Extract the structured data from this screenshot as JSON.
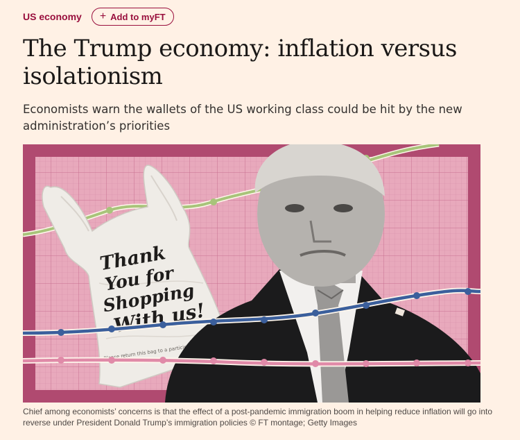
{
  "header": {
    "section_label": "US economy",
    "add_to_myft_label": "Add to myFT"
  },
  "article": {
    "headline": "The Trump economy: inflation versus isolationism",
    "standfirst": "Economists warn the wallets of the US working class could be hit by the new administration’s priorities"
  },
  "image": {
    "bag_text_lines": [
      "Thank",
      "You for",
      "Shopping",
      "With us!"
    ],
    "bag_small_print": "Please return this bag to a participating",
    "colors": {
      "frame": "#b04a70",
      "grid_bg": "#e8a9bc",
      "green_line": "#a8c47a",
      "blue_line": "#3b5f9c",
      "pink_line": "#e08aa8"
    }
  },
  "caption": "Chief among economists’ concerns is that the effect of a post-pandemic immigration boom in helping reduce inflation will go into reverse under President Donald Trump’s immigration policies © FT montage; Getty Images"
}
